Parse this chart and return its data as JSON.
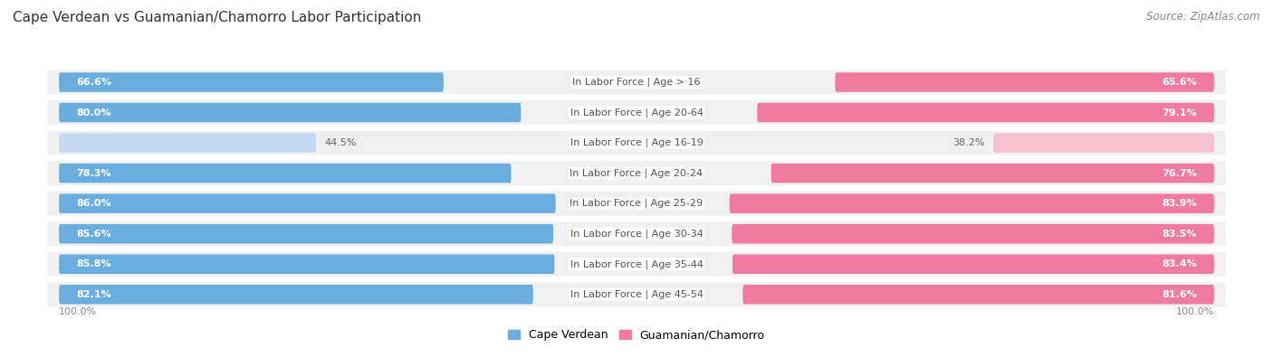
{
  "title": "Cape Verdean vs Guamanian/Chamorro Labor Participation",
  "source": "Source: ZipAtlas.com",
  "categories": [
    "In Labor Force | Age > 16",
    "In Labor Force | Age 20-64",
    "In Labor Force | Age 16-19",
    "In Labor Force | Age 20-24",
    "In Labor Force | Age 25-29",
    "In Labor Force | Age 30-34",
    "In Labor Force | Age 35-44",
    "In Labor Force | Age 45-54"
  ],
  "cape_verdean": [
    66.6,
    80.0,
    44.5,
    78.3,
    86.0,
    85.6,
    85.8,
    82.1
  ],
  "guamanian": [
    65.6,
    79.1,
    38.2,
    76.7,
    83.9,
    83.5,
    83.4,
    81.6
  ],
  "cape_verdean_color": "#6aaee0",
  "cape_verdean_light": "#c5d9f0",
  "guamanian_color": "#f07aa0",
  "guamanian_light": "#f5c0d0",
  "row_bg_color": "#f0f0f0",
  "fig_bg_color": "#ffffff",
  "title_color": "#333333",
  "source_color": "#888888",
  "label_white": "#ffffff",
  "label_dark": "#666666",
  "axis_label_color": "#888888",
  "max_value": 100.0,
  "title_fontsize": 11,
  "bar_label_fontsize": 8,
  "cat_label_fontsize": 8,
  "legend_fontsize": 9,
  "axis_fontsize": 8
}
